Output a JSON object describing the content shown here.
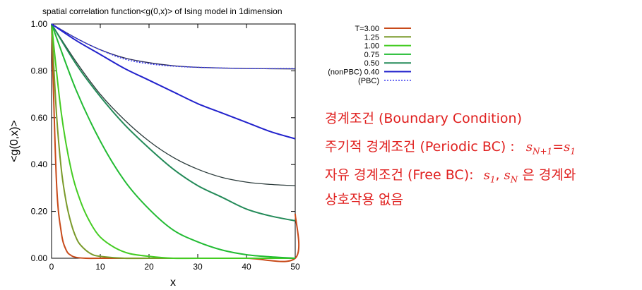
{
  "chart_data": {
    "type": "line",
    "title": "spatial correlation function<g(0,x)> of Ising model in 1dimension",
    "xlabel": "x",
    "ylabel": "<g(0,x)>",
    "xlim": [
      0,
      50
    ],
    "ylim": [
      0,
      1
    ],
    "xticks": [
      "0",
      "10",
      "20",
      "30",
      "40",
      "50"
    ],
    "yticks": [
      "0.00",
      "0.20",
      "0.40",
      "0.60",
      "0.80",
      "1.00"
    ],
    "grid": false,
    "legend_position": "top-right",
    "series": [
      {
        "name": "T=3.00",
        "color": "#c84a1a",
        "dashed": false,
        "points": [
          [
            0,
            1.0
          ],
          [
            1,
            0.33
          ],
          [
            2,
            0.11
          ],
          [
            3,
            0.035
          ],
          [
            4,
            0.012
          ],
          [
            5,
            0.004
          ],
          [
            7,
            0.0
          ],
          [
            10,
            0.0
          ],
          [
            20,
            0.0
          ],
          [
            30,
            0.0
          ],
          [
            40,
            0.0
          ],
          [
            50,
            0.0
          ],
          [
            50,
            0.19
          ]
        ]
      },
      {
        "name": "1.25",
        "color": "#7a9a2a",
        "dashed": false,
        "points": [
          [
            0,
            1.0
          ],
          [
            1,
            0.62
          ],
          [
            2,
            0.38
          ],
          [
            3,
            0.24
          ],
          [
            4,
            0.15
          ],
          [
            5,
            0.09
          ],
          [
            6,
            0.055
          ],
          [
            8,
            0.02
          ],
          [
            10,
            0.008
          ],
          [
            15,
            0.0
          ],
          [
            20,
            0.0
          ],
          [
            30,
            0.0
          ],
          [
            40,
            0.0
          ],
          [
            50,
            0.0
          ]
        ]
      },
      {
        "name": "1.00",
        "color": "#44cc22",
        "dashed": false,
        "points": [
          [
            0,
            1.0
          ],
          [
            2,
            0.62
          ],
          [
            4,
            0.38
          ],
          [
            6,
            0.24
          ],
          [
            8,
            0.15
          ],
          [
            10,
            0.09
          ],
          [
            13,
            0.045
          ],
          [
            16,
            0.02
          ],
          [
            20,
            0.008
          ],
          [
            25,
            0.0
          ],
          [
            30,
            0.0
          ],
          [
            40,
            0.0
          ],
          [
            50,
            0.0
          ]
        ]
      },
      {
        "name": "0.75",
        "color": "#22bb33",
        "dashed": false,
        "points": [
          [
            0,
            1.0
          ],
          [
            5,
            0.72
          ],
          [
            10,
            0.5
          ],
          [
            15,
            0.33
          ],
          [
            20,
            0.21
          ],
          [
            25,
            0.12
          ],
          [
            30,
            0.07
          ],
          [
            35,
            0.035
          ],
          [
            40,
            0.015
          ],
          [
            45,
            0.006
          ],
          [
            50,
            0.0
          ]
        ]
      },
      {
        "name": "0.50",
        "color": "#238a58",
        "dashed": false,
        "points": [
          [
            0,
            1.0
          ],
          [
            5,
            0.83
          ],
          [
            10,
            0.69
          ],
          [
            15,
            0.57
          ],
          [
            20,
            0.47
          ],
          [
            25,
            0.38
          ],
          [
            30,
            0.31
          ],
          [
            35,
            0.26
          ],
          [
            40,
            0.21
          ],
          [
            45,
            0.18
          ],
          [
            50,
            0.16
          ]
        ]
      },
      {
        "name": "(nonPBC) 0.40",
        "color": "#2222cc",
        "dashed": false,
        "points": [
          [
            0,
            1.0
          ],
          [
            5,
            0.93
          ],
          [
            10,
            0.87
          ],
          [
            15,
            0.81
          ],
          [
            20,
            0.76
          ],
          [
            25,
            0.71
          ],
          [
            30,
            0.66
          ],
          [
            35,
            0.62
          ],
          [
            40,
            0.58
          ],
          [
            45,
            0.54
          ],
          [
            50,
            0.51
          ]
        ]
      },
      {
        "name": "(PBC)",
        "color": "#3333ee",
        "dashed": true,
        "points": [
          [
            0,
            1.0
          ],
          [
            5,
            0.94
          ],
          [
            10,
            0.89
          ],
          [
            15,
            0.85
          ],
          [
            20,
            0.83
          ],
          [
            25,
            0.82
          ],
          [
            30,
            0.815
          ],
          [
            40,
            0.81
          ],
          [
            50,
            0.81
          ]
        ]
      }
    ],
    "extra_curves": [
      {
        "color": "#2a2a5a",
        "points": [
          [
            0,
            1.0
          ],
          [
            5,
            0.94
          ],
          [
            10,
            0.89
          ],
          [
            15,
            0.855
          ],
          [
            20,
            0.835
          ],
          [
            25,
            0.822
          ],
          [
            30,
            0.815
          ],
          [
            40,
            0.81
          ],
          [
            50,
            0.808
          ]
        ]
      },
      {
        "color": "#2a3a3a",
        "points": [
          [
            0,
            1.0
          ],
          [
            5,
            0.84
          ],
          [
            10,
            0.7
          ],
          [
            15,
            0.59
          ],
          [
            20,
            0.5
          ],
          [
            25,
            0.43
          ],
          [
            30,
            0.38
          ],
          [
            35,
            0.345
          ],
          [
            40,
            0.325
          ],
          [
            45,
            0.315
          ],
          [
            50,
            0.31
          ]
        ]
      }
    ]
  },
  "notes": {
    "line1": "경계조건 (Boundary Condition)",
    "line2_text": "주기적 경계조건 (Periodic BC) :",
    "line2_s1": "s",
    "line2_sub1": "N+1",
    "line2_eq": "=",
    "line2_s2": "s",
    "line2_sub2": "1",
    "line3_text": "자유 경계조건 (Free BC):",
    "line3_s1": "s",
    "line3_sub1": "1",
    "line3_comma": ",",
    "line3_s2": "s",
    "line3_sub2": "N",
    "line3_rest": "은 경계와",
    "line4": "상호작용 없음"
  }
}
